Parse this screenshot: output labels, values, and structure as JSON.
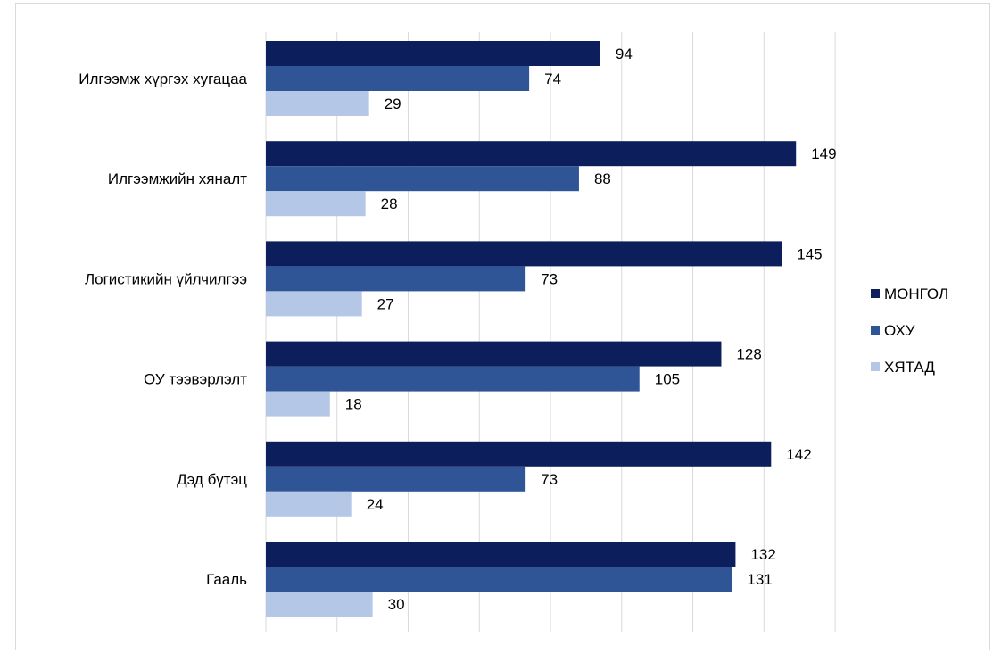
{
  "chart_data": {
    "type": "bar",
    "orientation": "horizontal",
    "title": "",
    "xlabel": "",
    "ylabel": "",
    "categories": [
      "Илгээмж хүргэх хугацаа",
      "Илгээмжийн хяналт",
      "Логистикийн үйлчилгээ",
      "ОУ тээвэрлэлт",
      "Дэд бүтэц",
      "Гааль"
    ],
    "series": [
      {
        "name": "МОНГОЛ",
        "color": "#0c1f5c",
        "values": [
          94,
          149,
          145,
          128,
          142,
          132
        ]
      },
      {
        "name": "ОХУ",
        "color": "#2f5597",
        "values": [
          74,
          88,
          73,
          105,
          73,
          131
        ]
      },
      {
        "name": "ХЯТАД",
        "color": "#b4c7e7",
        "values": [
          29,
          28,
          27,
          18,
          24,
          30
        ]
      }
    ],
    "xlim": [
      0,
      160
    ],
    "grid": true,
    "gridlines_every": 20,
    "tick_labels_visible": false,
    "legend_position": "right"
  }
}
